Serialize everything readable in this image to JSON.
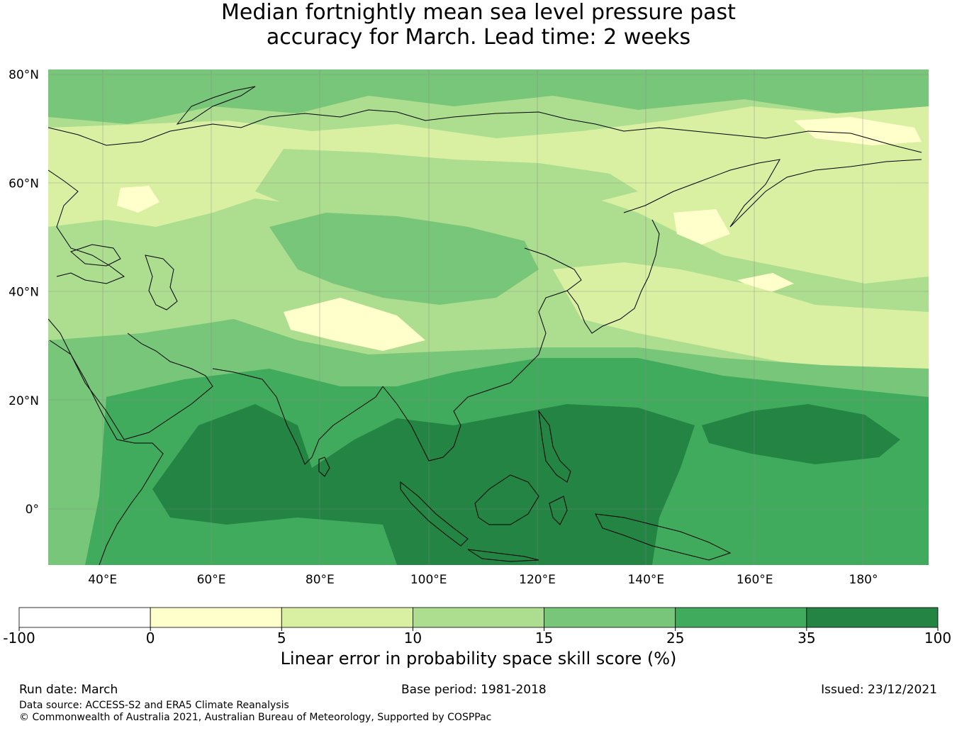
{
  "title": {
    "line1": "Median fortnightly mean sea level pressure past",
    "line2": "accuracy for March. Lead time: 2 weeks"
  },
  "map": {
    "lon_range": [
      30,
      192
    ],
    "lat_range": [
      -10,
      80
    ],
    "lat_ticks": [
      {
        "value": 80,
        "label": "80°N"
      },
      {
        "value": 60,
        "label": "60°N"
      },
      {
        "value": 40,
        "label": "40°N"
      },
      {
        "value": 20,
        "label": "20°N"
      },
      {
        "value": 0,
        "label": "0°"
      }
    ],
    "lon_ticks": [
      {
        "value": 40,
        "label": "40°E"
      },
      {
        "value": 60,
        "label": "60°E"
      },
      {
        "value": 80,
        "label": "80°E"
      },
      {
        "value": 100,
        "label": "100°E"
      },
      {
        "value": 120,
        "label": "120°E"
      },
      {
        "value": 140,
        "label": "140°E"
      },
      {
        "value": 160,
        "label": "160°E"
      },
      {
        "value": 180,
        "label": "180°"
      }
    ],
    "grid": true,
    "colors": {
      "0_5": "#ffffcc",
      "5_10": "#d9f0a3",
      "10_15": "#addd8e",
      "15_25": "#78c679",
      "25_35": "#41ab5d",
      "35_100": "#238443"
    }
  },
  "colorbar": {
    "ticks": [
      "-100",
      "0",
      "5",
      "10",
      "15",
      "25",
      "35",
      "100"
    ],
    "colors": [
      "#ffffff",
      "#ffffcc",
      "#d9f0a3",
      "#addd8e",
      "#78c679",
      "#41ab5d",
      "#238443"
    ],
    "label": "Linear error in probability space skill score (%)"
  },
  "footer": {
    "run_date": "Run date: March",
    "base_period": "Base period: 1981-2018",
    "issued": "Issued: 23/12/2021",
    "data_source": "Data source: ACCESS-S2 and ERA5 Climate Reanalysis",
    "copyright": "© Commonwealth of Australia 2021, Australian Bureau of Meteorology, Supported by COSPPac"
  }
}
